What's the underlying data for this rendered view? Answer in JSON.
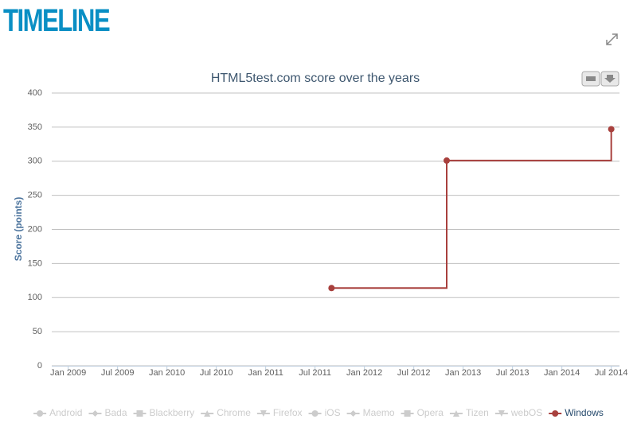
{
  "header": {
    "title": "TIMELINE"
  },
  "chart_data": {
    "type": "line",
    "step": true,
    "title": "HTML5test.com score over the years",
    "y_label": "Score (points)",
    "x": [
      "2011-09",
      "2012-11",
      "2014-07"
    ],
    "series": [
      {
        "name": "Windows",
        "color": "#a8403d",
        "values": [
          114,
          301,
          347
        ]
      }
    ],
    "hidden_series": [
      {
        "name": "Android",
        "symbol": "circle"
      },
      {
        "name": "Bada",
        "symbol": "diamond"
      },
      {
        "name": "Blackberry",
        "symbol": "square"
      },
      {
        "name": "Chrome",
        "symbol": "triangle"
      },
      {
        "name": "Firefox",
        "symbol": "triangle-down"
      },
      {
        "name": "iOS",
        "symbol": "circle"
      },
      {
        "name": "Maemo",
        "symbol": "diamond"
      },
      {
        "name": "Opera",
        "symbol": "square"
      },
      {
        "name": "Tizen",
        "symbol": "triangle"
      },
      {
        "name": "webOS",
        "symbol": "triangle-down"
      }
    ],
    "hidden_color": "#cccccc",
    "xlim": [
      "2008-11",
      "2014-08"
    ],
    "xticks": [
      {
        "value": "2009-01",
        "label": "Jan 2009"
      },
      {
        "value": "2009-07",
        "label": "Jul 2009"
      },
      {
        "value": "2010-01",
        "label": "Jan 2010"
      },
      {
        "value": "2010-07",
        "label": "Jul 2010"
      },
      {
        "value": "2011-01",
        "label": "Jan 2011"
      },
      {
        "value": "2011-07",
        "label": "Jul 2011"
      },
      {
        "value": "2012-01",
        "label": "Jan 2012"
      },
      {
        "value": "2012-07",
        "label": "Jul 2012"
      },
      {
        "value": "2013-01",
        "label": "Jan 2013"
      },
      {
        "value": "2013-07",
        "label": "Jul 2013"
      },
      {
        "value": "2014-01",
        "label": "Jan 2014"
      },
      {
        "value": "2014-07",
        "label": "Jul 2014"
      }
    ],
    "ylim": [
      0,
      400
    ],
    "yticks": [
      0,
      50,
      100,
      150,
      200,
      250,
      300,
      350,
      400
    ],
    "grid": true
  }
}
